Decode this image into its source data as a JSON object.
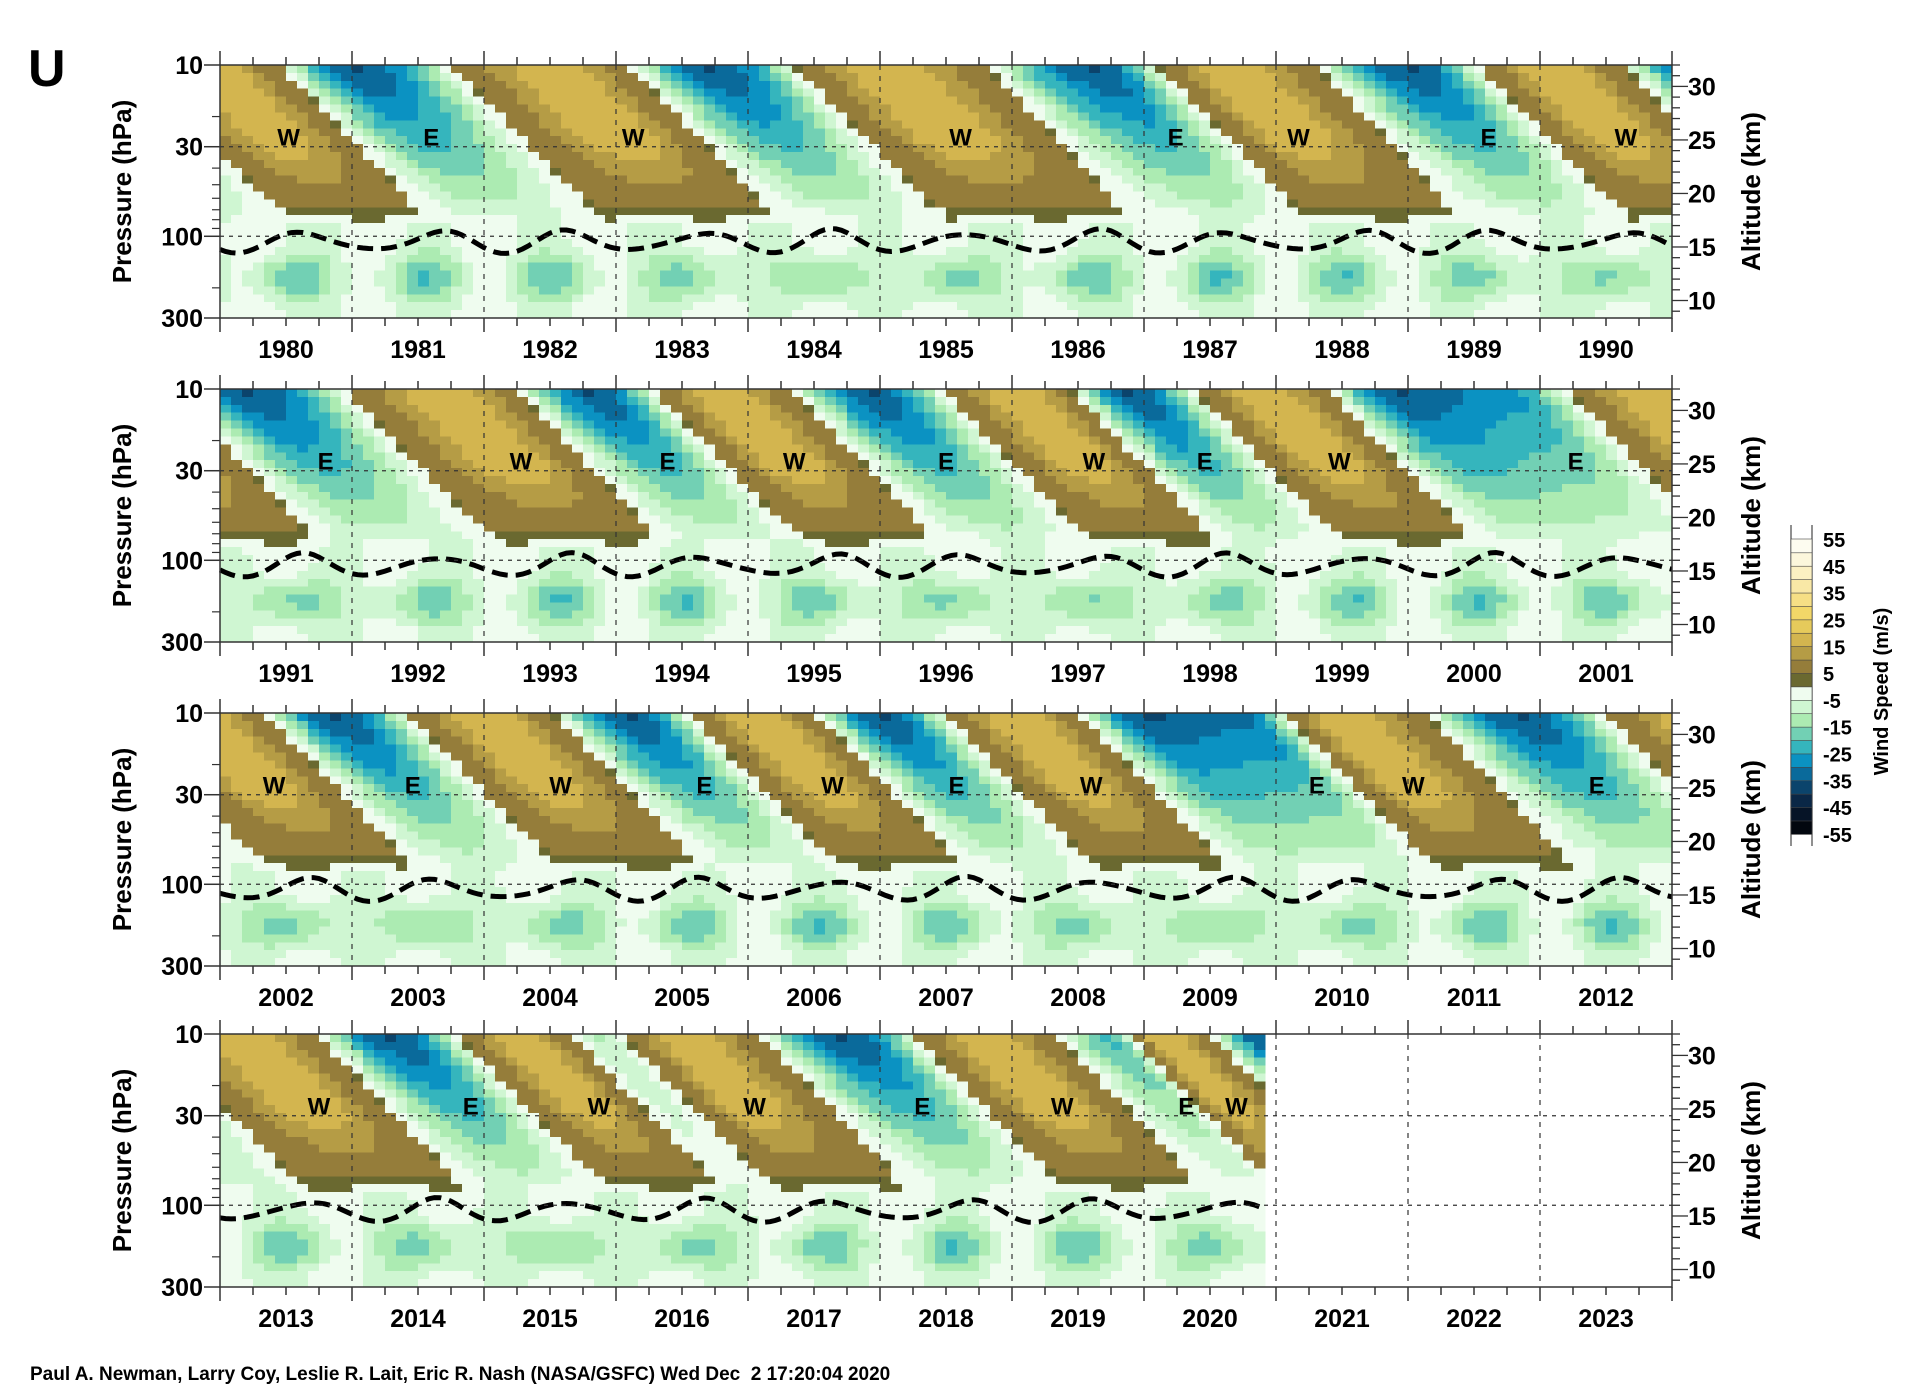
{
  "figure_label": "U",
  "footer": "Paul A. Newman, Larry Coy, Leslie R. Lait, Eric R. Nash (NASA/GSFC) Wed Dec  2 17:20:04 2020",
  "chart_data": {
    "type": "heatmap",
    "title": "U",
    "ylabel": "Pressure (hPa)",
    "y2label": "Altitude (km)",
    "yticks": [
      10,
      30,
      100,
      300
    ],
    "yminor": [
      20,
      40,
      50,
      60,
      70,
      80,
      90,
      200
    ],
    "ylim": [
      300,
      10
    ],
    "y2ticks": [
      10,
      15,
      20,
      25,
      30
    ],
    "gridlines_hPa": [
      30,
      100
    ],
    "data_end_year": 2020.92,
    "colorbar": {
      "label": "Wind Speed (m/s)",
      "ticks": [
        "55",
        "45",
        "35",
        "25",
        "15",
        "5",
        "-5",
        "-15",
        "-25",
        "-35",
        "-45",
        "-55"
      ],
      "range": [
        -55,
        55
      ],
      "step": 5,
      "colors_low_to_high": [
        "#02070f",
        "#061427",
        "#0a2746",
        "#0b446c",
        "#0a6a9b",
        "#0b92c2",
        "#35b5bd",
        "#72d0b4",
        "#acebb2",
        "#cff6d2",
        "#effcef",
        "#6a6930",
        "#957d3a",
        "#b59c45",
        "#d3b54f",
        "#e6ca5b",
        "#f2d768",
        "#f6df85",
        "#f9e8a6",
        "#fbf0c2",
        "#fcf7dc",
        "#fdfcf0"
      ]
    },
    "panels": [
      {
        "years": [
          "1980",
          "1981",
          "1982",
          "1983",
          "1984",
          "1985",
          "1986",
          "1987",
          "1988",
          "1989",
          "1990"
        ],
        "start_year": 1980,
        "labels": [
          {
            "text": "W",
            "year": 1980.52
          },
          {
            "text": "E",
            "year": 1981.6
          },
          {
            "text": "W",
            "year": 1983.13
          },
          {
            "text": "W",
            "year": 1985.61
          },
          {
            "text": "E",
            "year": 1987.24
          },
          {
            "text": "W",
            "year": 1988.17
          },
          {
            "text": "E",
            "year": 1989.61
          },
          {
            "text": "W",
            "year": 1990.65
          }
        ]
      },
      {
        "years": [
          "1991",
          "1992",
          "1993",
          "1994",
          "1995",
          "1996",
          "1997",
          "1998",
          "1999",
          "2000",
          "2001"
        ],
        "start_year": 1991,
        "labels": [
          {
            "text": "E",
            "year": 1991.8
          },
          {
            "text": "W",
            "year": 1993.28
          },
          {
            "text": "E",
            "year": 1994.39
          },
          {
            "text": "W",
            "year": 1995.35
          },
          {
            "text": "E",
            "year": 1996.5
          },
          {
            "text": "W",
            "year": 1997.62
          },
          {
            "text": "E",
            "year": 1998.46
          },
          {
            "text": "W",
            "year": 1999.48
          },
          {
            "text": "E",
            "year": 2001.27
          }
        ]
      },
      {
        "years": [
          "2002",
          "2003",
          "2004",
          "2005",
          "2006",
          "2007",
          "2008",
          "2009",
          "2010",
          "2011",
          "2012"
        ],
        "start_year": 2002,
        "labels": [
          {
            "text": "W",
            "year": 2002.41
          },
          {
            "text": "E",
            "year": 2003.46
          },
          {
            "text": "W",
            "year": 2004.58
          },
          {
            "text": "E",
            "year": 2005.67
          },
          {
            "text": "W",
            "year": 2006.64
          },
          {
            "text": "E",
            "year": 2007.58
          },
          {
            "text": "W",
            "year": 2008.6
          },
          {
            "text": "E",
            "year": 2010.31
          },
          {
            "text": "W",
            "year": 2011.04
          },
          {
            "text": "E",
            "year": 2012.43
          }
        ]
      },
      {
        "years": [
          "2013",
          "2014",
          "2015",
          "2016",
          "2017",
          "2018",
          "2019",
          "2020",
          "2021",
          "2022",
          "2023"
        ],
        "start_year": 2013,
        "labels": [
          {
            "text": "W",
            "year": 2013.75
          },
          {
            "text": "E",
            "year": 2014.9
          },
          {
            "text": "W",
            "year": 2015.87
          },
          {
            "text": "W",
            "year": 2017.05
          },
          {
            "text": "E",
            "year": 2018.32
          },
          {
            "text": "W",
            "year": 2019.38
          },
          {
            "text": "E",
            "year": 2020.32
          },
          {
            "text": "W",
            "year": 2020.7
          }
        ]
      }
    ],
    "phase_extrema_30hPa": [
      [
        1979.4,
        -1
      ],
      [
        1980.5,
        1
      ],
      [
        1981.6,
        -1
      ],
      [
        1983.1,
        1
      ],
      [
        1984.3,
        -1
      ],
      [
        1985.6,
        1
      ],
      [
        1987.2,
        -1
      ],
      [
        1988.2,
        1
      ],
      [
        1989.6,
        -1
      ],
      [
        1990.65,
        1
      ],
      [
        1991.8,
        -1
      ],
      [
        1993.28,
        1
      ],
      [
        1994.4,
        -1
      ],
      [
        1995.35,
        1
      ],
      [
        1996.5,
        -1
      ],
      [
        1997.62,
        1
      ],
      [
        1998.46,
        -1
      ],
      [
        1999.48,
        1
      ],
      [
        2000.5,
        -1
      ],
      [
        2001.27,
        -0.8
      ],
      [
        2002.41,
        1
      ],
      [
        2003.46,
        -1
      ],
      [
        2004.58,
        1
      ],
      [
        2005.67,
        -1
      ],
      [
        2006.64,
        1
      ],
      [
        2007.58,
        -1
      ],
      [
        2008.6,
        1
      ],
      [
        2009.6,
        -1
      ],
      [
        2010.31,
        -0.9
      ],
      [
        2011.04,
        1
      ],
      [
        2012.43,
        -1
      ],
      [
        2013.75,
        1
      ],
      [
        2014.9,
        -1
      ],
      [
        2015.87,
        1
      ],
      [
        2016.45,
        -0.3
      ],
      [
        2017.05,
        1
      ],
      [
        2018.32,
        -1
      ],
      [
        2019.38,
        1
      ],
      [
        2020.32,
        -0.6
      ],
      [
        2020.7,
        1
      ],
      [
        2021.5,
        -1
      ]
    ]
  }
}
